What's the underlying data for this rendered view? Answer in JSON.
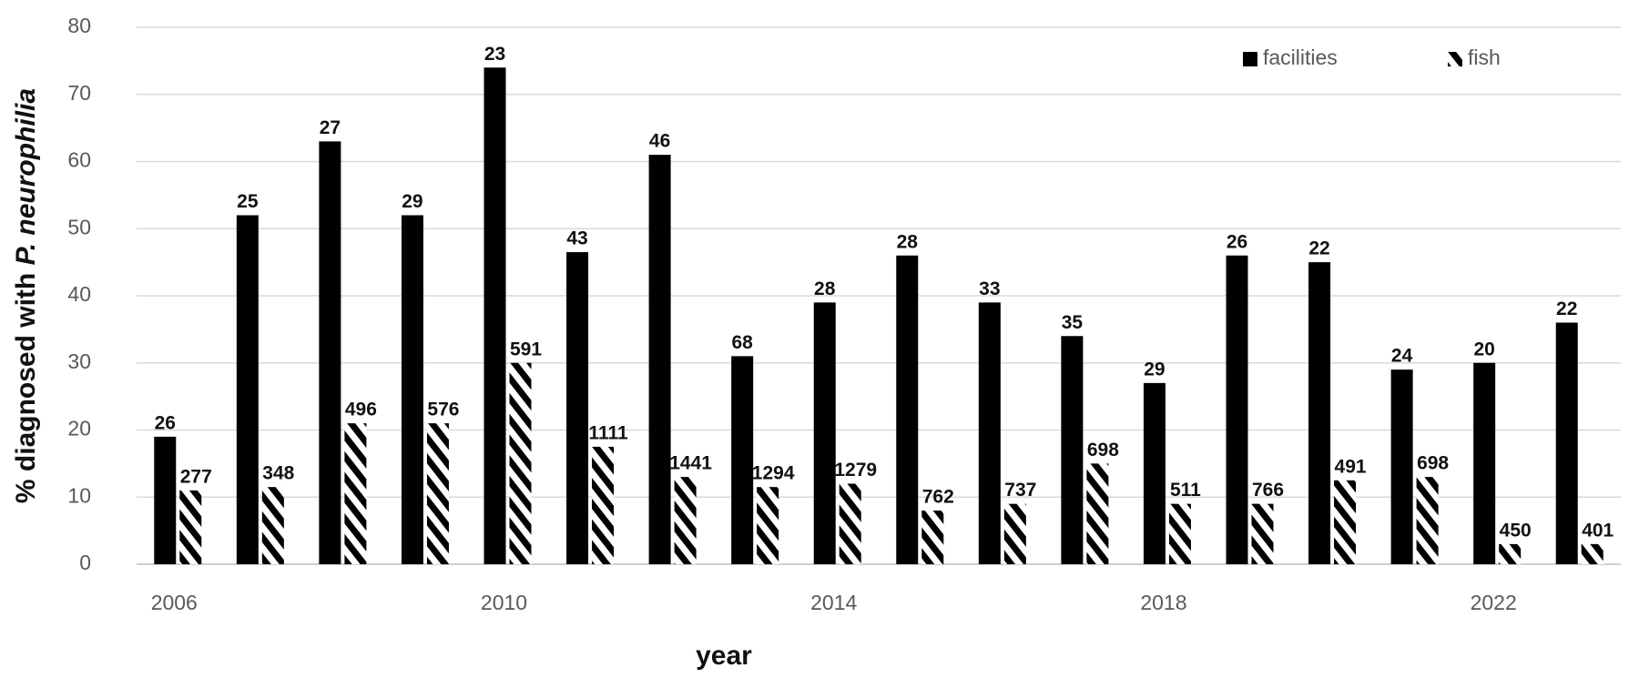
{
  "chart_data": {
    "type": "bar",
    "y_label": [
      "% diagnosed with ",
      "P. neurophilia"
    ],
    "x_label": "year",
    "categories": [
      "2006",
      null,
      null,
      null,
      "2010",
      null,
      null,
      null,
      "2014",
      null,
      null,
      null,
      "2018",
      null,
      null,
      null,
      "2022",
      null
    ],
    "ylim": [
      0,
      80
    ],
    "yticks": [
      0,
      10,
      20,
      30,
      40,
      50,
      60,
      70,
      80
    ],
    "grid": true,
    "legend": "top-right",
    "series": [
      {
        "name": "facilities",
        "color": "#000000",
        "hatch": false,
        "values": [
          19,
          52,
          63,
          52,
          74,
          46.5,
          61,
          31,
          39,
          46,
          39,
          34,
          27,
          46,
          45,
          29,
          30,
          36
        ],
        "counts": [
          26,
          25,
          27,
          29,
          23,
          43,
          46,
          68,
          28,
          28,
          33,
          35,
          29,
          26,
          22,
          24,
          20,
          22
        ]
      },
      {
        "name": "fish",
        "color": "#000000",
        "hatch": true,
        "values": [
          11,
          11.5,
          21,
          21,
          30,
          17.5,
          13,
          11.5,
          12,
          8,
          9,
          15,
          9,
          9,
          12.5,
          13,
          3,
          3
        ],
        "counts": [
          277,
          348,
          496,
          576,
          591,
          1111,
          1441,
          1294,
          1279,
          762,
          737,
          698,
          511,
          766,
          491,
          698,
          450,
          401
        ]
      }
    ]
  }
}
